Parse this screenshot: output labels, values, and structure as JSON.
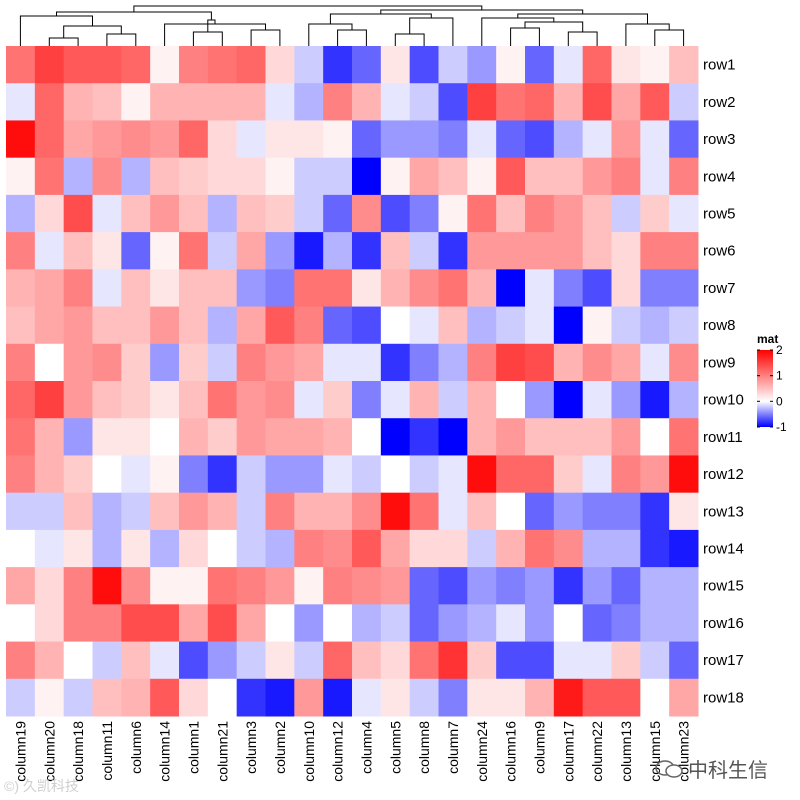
{
  "chart_data": {
    "type": "heatmap",
    "legend": {
      "title": "mat",
      "ticks": [
        2,
        1,
        0,
        -1
      ],
      "range": [
        -1,
        2
      ]
    },
    "rows": [
      "row1",
      "row2",
      "row3",
      "row4",
      "row5",
      "row6",
      "row7",
      "row8",
      "row9",
      "row10",
      "row11",
      "row12",
      "row13",
      "row14",
      "row15",
      "row16",
      "row17",
      "row18"
    ],
    "columns": [
      "column19",
      "column20",
      "column18",
      "column11",
      "column6",
      "column14",
      "column1",
      "column21",
      "column3",
      "column2",
      "column10",
      "column12",
      "column4",
      "column5",
      "column8",
      "column7",
      "column24",
      "column16",
      "column9",
      "column17",
      "column22",
      "column13",
      "column15",
      "column23"
    ],
    "values": [
      [
        1.1,
        1.5,
        1.3,
        1.3,
        1.2,
        0.1,
        1.0,
        1.1,
        1.2,
        0.3,
        -0.2,
        -0.8,
        -0.6,
        0.2,
        -0.7,
        -0.2,
        -0.4,
        0.1,
        -0.6,
        -0.1,
        1.2,
        0.2,
        0.1,
        0.5
      ],
      [
        -0.1,
        1.2,
        0.6,
        0.5,
        0.1,
        0.6,
        0.6,
        0.6,
        0.6,
        -0.1,
        -0.3,
        1.0,
        0.6,
        -0.1,
        -0.2,
        -0.7,
        1.5,
        1.1,
        1.2,
        0.6,
        1.4,
        0.7,
        1.3,
        -0.2
      ],
      [
        1.9,
        1.2,
        0.7,
        0.8,
        0.9,
        0.8,
        1.2,
        0.3,
        -0.1,
        0.2,
        0.2,
        0.1,
        -0.6,
        -0.4,
        -0.4,
        -0.5,
        -0.1,
        -0.6,
        -0.7,
        -0.3,
        -0.1,
        0.8,
        -0.1,
        -0.6
      ],
      [
        0.1,
        1.1,
        -0.3,
        0.9,
        -0.3,
        0.5,
        0.4,
        0.3,
        0.3,
        0.1,
        -0.2,
        -0.2,
        -1.0,
        0.1,
        0.7,
        0.5,
        0.1,
        1.3,
        0.5,
        0.5,
        0.8,
        1.0,
        -0.1,
        1.0
      ],
      [
        -0.3,
        0.3,
        1.4,
        -0.1,
        0.5,
        0.8,
        0.5,
        -0.3,
        0.5,
        0.4,
        -0.2,
        -0.6,
        0.9,
        -0.7,
        -0.5,
        0.1,
        1.1,
        0.5,
        1.0,
        0.8,
        0.5,
        -0.2,
        0.4,
        -0.1
      ],
      [
        1.0,
        -0.1,
        0.5,
        0.2,
        -0.6,
        0.1,
        1.1,
        -0.2,
        0.7,
        -0.4,
        -0.9,
        -0.3,
        -0.8,
        0.5,
        -0.2,
        -0.8,
        0.8,
        0.8,
        0.8,
        0.8,
        0.5,
        0.3,
        1.0,
        1.0
      ],
      [
        0.6,
        0.7,
        1.0,
        -0.1,
        0.5,
        0.2,
        0.5,
        0.5,
        -0.4,
        -0.5,
        1.1,
        1.1,
        0.2,
        0.6,
        0.9,
        1.1,
        0.6,
        -1.0,
        -0.1,
        -0.5,
        -0.7,
        0.3,
        -0.5,
        -0.5
      ],
      [
        0.5,
        0.7,
        0.8,
        0.5,
        0.5,
        0.8,
        0.5,
        -0.3,
        0.7,
        1.3,
        1.0,
        -0.6,
        -0.7,
        0.0,
        -0.1,
        0.5,
        -0.3,
        -0.2,
        -0.1,
        -1.0,
        0.1,
        -0.2,
        -0.3,
        -0.2
      ],
      [
        1.0,
        0.0,
        0.8,
        0.9,
        0.4,
        -0.4,
        0.4,
        -0.2,
        1.0,
        0.8,
        0.7,
        -0.1,
        -0.1,
        -0.8,
        -0.5,
        -0.3,
        1.0,
        1.5,
        1.4,
        0.6,
        0.9,
        0.7,
        -0.1,
        0.9
      ],
      [
        1.2,
        1.5,
        0.8,
        0.5,
        0.4,
        0.2,
        0.5,
        1.1,
        0.8,
        0.9,
        -0.1,
        0.4,
        -0.5,
        -0.1,
        0.6,
        -0.2,
        0.6,
        0.0,
        -0.4,
        -1.0,
        -0.1,
        -0.4,
        -0.9,
        -0.3
      ],
      [
        1.1,
        0.6,
        -0.4,
        0.2,
        0.2,
        0.0,
        0.6,
        0.4,
        0.8,
        0.7,
        0.7,
        0.6,
        0.0,
        -1.0,
        -0.8,
        -1.0,
        0.6,
        0.8,
        0.5,
        0.5,
        0.5,
        0.8,
        0.0,
        1.1
      ],
      [
        1.0,
        0.6,
        0.4,
        0.0,
        -0.1,
        0.1,
        -0.5,
        -0.8,
        -0.2,
        -0.4,
        -0.4,
        -0.1,
        -0.2,
        0.0,
        -0.2,
        -0.1,
        1.9,
        1.2,
        1.2,
        0.4,
        -0.1,
        1.0,
        0.8,
        1.9
      ],
      [
        -0.2,
        -0.2,
        0.5,
        -0.3,
        -0.2,
        0.5,
        0.8,
        0.6,
        -0.2,
        1.0,
        0.6,
        0.6,
        0.9,
        1.9,
        1.1,
        -0.1,
        0.5,
        0.0,
        -0.6,
        -0.4,
        -0.5,
        -0.5,
        -0.8,
        0.2
      ],
      [
        0.0,
        -0.1,
        0.2,
        -0.3,
        0.2,
        -0.3,
        0.3,
        0.0,
        -0.2,
        -0.3,
        1.0,
        0.9,
        1.3,
        0.7,
        0.3,
        0.3,
        -0.2,
        0.6,
        1.1,
        0.9,
        -0.3,
        -0.3,
        -0.8,
        -0.9
      ],
      [
        0.7,
        0.3,
        1.0,
        1.9,
        0.9,
        0.1,
        0.1,
        1.1,
        1.0,
        0.8,
        0.1,
        1.0,
        0.9,
        0.8,
        -0.6,
        -0.7,
        -0.4,
        -0.5,
        -0.4,
        -0.8,
        -0.4,
        -0.6,
        -0.3,
        -0.3
      ],
      [
        0.0,
        0.3,
        1.0,
        1.0,
        1.4,
        1.4,
        0.7,
        1.4,
        0.7,
        0.0,
        -0.4,
        0.0,
        -0.3,
        -0.2,
        -0.6,
        -0.4,
        -0.3,
        -0.1,
        -0.4,
        0.0,
        -0.6,
        -0.5,
        -0.3,
        -0.3
      ],
      [
        1.0,
        0.6,
        0.0,
        -0.2,
        0.5,
        -0.1,
        -0.7,
        -0.4,
        -0.2,
        0.2,
        -0.2,
        1.2,
        0.5,
        0.3,
        1.1,
        1.6,
        0.4,
        -0.7,
        -0.7,
        -0.1,
        -0.1,
        0.4,
        -0.2,
        -0.6
      ],
      [
        -0.2,
        0.1,
        -0.2,
        0.5,
        0.6,
        1.3,
        0.3,
        0.0,
        -0.8,
        -0.9,
        0.8,
        -0.9,
        -0.1,
        0.2,
        -0.2,
        -0.5,
        0.2,
        0.2,
        0.6,
        1.8,
        1.3,
        1.3,
        0.0,
        0.7
      ]
    ],
    "colors": {
      "low": "#0000ff",
      "mid": "#ffffff",
      "high": "#ff0000"
    }
  },
  "watermark": {
    "left": "©) 久凯科技",
    "right": "中科生信"
  }
}
